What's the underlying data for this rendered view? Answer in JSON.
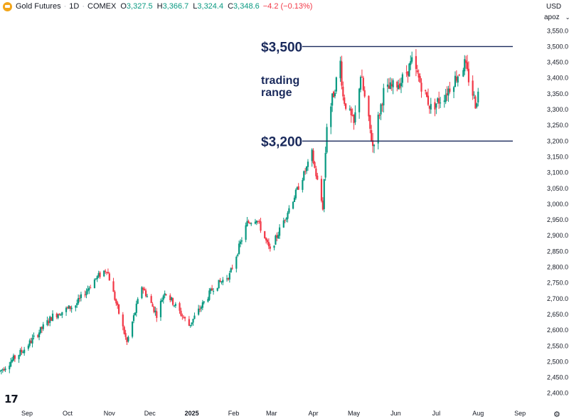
{
  "header": {
    "symbol": "Gold Futures",
    "interval": "1D",
    "exchange": "COMEX",
    "open_label": "O",
    "open": "3,327.5",
    "high_label": "H",
    "high": "3,366.7",
    "low_label": "L",
    "low": "3,324.4",
    "close_label": "C",
    "close": "3,348.6",
    "change": "−4.2 (−0.13%)"
  },
  "axis": {
    "currency": "USD",
    "unit": "apoz",
    "unit_chevron": "⌄",
    "settings_icon": "⚙",
    "logo_text": "17"
  },
  "colors": {
    "up": "#089981",
    "down": "#f23645",
    "annotation": "#1a2a5c",
    "header_logo": "#f2a51a"
  },
  "chart_data": {
    "type": "candlestick",
    "title": "",
    "xlabel": "",
    "ylabel": "",
    "ylim": [
      2370,
      3580
    ],
    "y_ticks": [
      2400,
      2450,
      2500,
      2550,
      2600,
      2650,
      2700,
      2750,
      2800,
      2850,
      2900,
      2950,
      3000,
      3050,
      3100,
      3150,
      3200,
      3250,
      3300,
      3350,
      3400,
      3450,
      3500,
      3550
    ],
    "y_tick_labels": [
      "2,400.0",
      "2,450.0",
      "2,500.0",
      "2,550.0",
      "2,600.0",
      "2,650.0",
      "2,700.0",
      "2,750.0",
      "2,800.0",
      "2,850.0",
      "2,900.0",
      "2,950.0",
      "3,000.0",
      "3,050.0",
      "3,100.0",
      "3,150.0",
      "3,200.0",
      "3,250.0",
      "3,300.0",
      "3,350.0",
      "3,400.0",
      "3,450.0",
      "3,500.0",
      "3,550.0"
    ],
    "x_range": [
      "2024-08-12",
      "2025-09-12"
    ],
    "x_ticks": [
      {
        "label": "Sep",
        "date": "2024-09-01",
        "bold": false
      },
      {
        "label": "Oct",
        "date": "2024-10-01",
        "bold": false
      },
      {
        "label": "Nov",
        "date": "2024-11-01",
        "bold": false
      },
      {
        "label": "Dec",
        "date": "2024-12-01",
        "bold": false
      },
      {
        "label": "2025",
        "date": "2025-01-01",
        "bold": true
      },
      {
        "label": "Feb",
        "date": "2025-02-01",
        "bold": false
      },
      {
        "label": "Mar",
        "date": "2025-03-01",
        "bold": false
      },
      {
        "label": "Apr",
        "date": "2025-04-01",
        "bold": false
      },
      {
        "label": "May",
        "date": "2025-05-01",
        "bold": false
      },
      {
        "label": "Jun",
        "date": "2025-06-01",
        "bold": false
      },
      {
        "label": "Jul",
        "date": "2025-07-01",
        "bold": false
      },
      {
        "label": "Aug",
        "date": "2025-08-01",
        "bold": false
      },
      {
        "label": "Sep",
        "date": "2025-09-01",
        "bold": false
      }
    ],
    "series": [
      {
        "dates": [
          "2024-08-12",
          "2024-08-30",
          "2024-09-20",
          "2024-10-07",
          "2024-10-21",
          "2024-10-30",
          "2024-11-14",
          "2024-11-25",
          "2024-12-06",
          "2024-12-12",
          "2024-12-30",
          "2025-01-17",
          "2025-01-29",
          "2025-02-11",
          "2025-02-18",
          "2025-02-28",
          "2025-03-20",
          "2025-03-31",
          "2025-04-08",
          "2025-04-11",
          "2025-04-21",
          "2025-04-23",
          "2025-05-01",
          "2025-05-06",
          "2025-05-15",
          "2025-05-23",
          "2025-06-05",
          "2025-06-13",
          "2025-06-27",
          "2025-07-07",
          "2025-07-22",
          "2025-07-30",
          "2025-08-01"
        ],
        "values": [
          2470,
          2540,
          2645,
          2680,
          2760,
          2795,
          2560,
          2740,
          2650,
          2725,
          2615,
          2735,
          2775,
          2940,
          2955,
          2850,
          3045,
          3155,
          2990,
          3255,
          3450,
          3340,
          3250,
          3410,
          3185,
          3355,
          3390,
          3450,
          3305,
          3345,
          3445,
          3320,
          3350
        ]
      }
    ],
    "horizontal_lines": [
      {
        "label": "$3,500",
        "value": 3500
      },
      {
        "label": "$3,200",
        "value": 3200
      }
    ],
    "annotation": {
      "lines": [
        "trading",
        "range"
      ],
      "price": 3395
    }
  }
}
